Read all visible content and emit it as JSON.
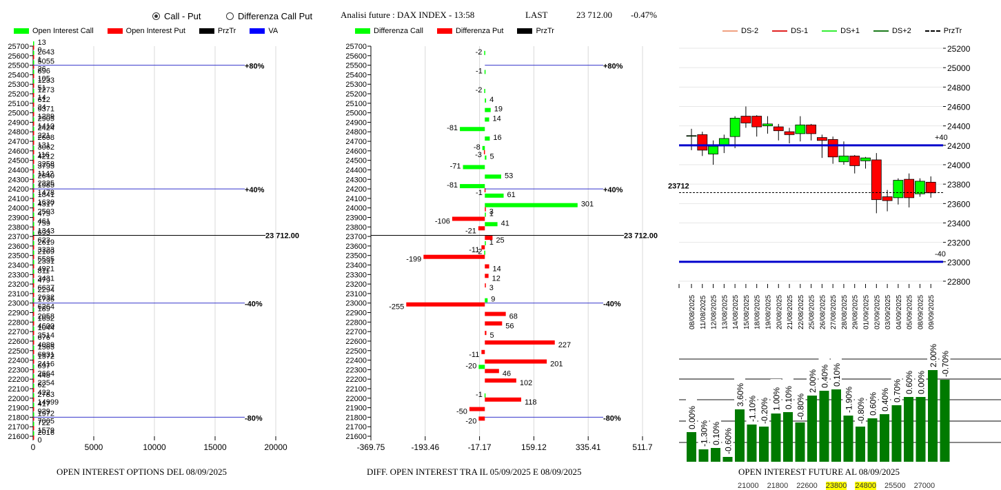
{
  "header": {
    "radio_options": [
      {
        "label": "Call - Put",
        "selected": true
      },
      {
        "label": "Differenza Call Put",
        "selected": false
      }
    ],
    "title": "Analisi future : DAX INDEX - 13:58",
    "last_label": "LAST",
    "last_value": "23 712.00",
    "change": "-0.47%"
  },
  "colors": {
    "call": "#00ff00",
    "put": "#ff0000",
    "prztr": "#000000",
    "va": "#0000ff",
    "ds_minus2": "#f0a080",
    "ds_minus1": "#e02020",
    "ds_plus1": "#33ee33",
    "ds_plus2": "#1a7a1a",
    "bar_green": "#007a00"
  },
  "legends": {
    "left": [
      "Open Interest Call",
      "Open Interest Put",
      "PrzTr",
      "VA"
    ],
    "middle": [
      "Differenza Call",
      "Differenza Put",
      "PrzTr"
    ],
    "right": [
      "DS-2",
      "DS-1",
      "DS+1",
      "DS+2",
      "PrzTr"
    ]
  },
  "chart_data": [
    {
      "type": "bar",
      "orientation": "horizontal",
      "title": "OPEN INTEREST OPTIONS DEL 08/09/2025",
      "categories": [
        25700,
        25600,
        25500,
        25400,
        25300,
        25200,
        25100,
        25000,
        24900,
        24800,
        24700,
        24600,
        24500,
        24400,
        24300,
        24200,
        24100,
        24000,
        23900,
        23800,
        23700,
        23600,
        23500,
        23400,
        23300,
        23200,
        23100,
        23000,
        22900,
        22800,
        22700,
        22600,
        22500,
        22400,
        22300,
        22200,
        22100,
        22000,
        21900,
        21800,
        21700,
        21600
      ],
      "series": [
        {
          "name": "Open Interest Call",
          "values": [
            13,
            2643,
            5055,
            896,
            1233,
            1273,
            612,
            9371,
            2905,
            2424,
            2608,
            3062,
            4212,
            3795,
            2640,
            1985,
            1841,
            4317,
            475,
            759,
            693,
            2619,
            2109,
            2331,
            811,
            479,
            2294,
            1735,
            189,
            1652,
            1044,
            676,
            1565,
            1572,
            697,
            448,
            62,
            2783,
            417,
            1972,
            722,
            2016
          ]
        },
        {
          "name": "Open Interest Put",
          "values": [
            0,
            1,
            26,
            105,
            51,
            14,
            24,
            1289,
            1410,
            221,
            131,
            116,
            3258,
            1142,
            2225,
            1478,
            1630,
            2503,
            461,
            1343,
            623,
            3323,
            5585,
            4921,
            3431,
            6637,
            2632,
            6264,
            2058,
            4600,
            3514,
            4089,
            6931,
            2416,
            2664,
            2354,
            422,
            14999,
            929,
            7005,
            1579,
            0
          ]
        }
      ],
      "xlim": [
        0,
        20000
      ],
      "xticks": [
        "0",
        "5000",
        "10000",
        "15000",
        "20000"
      ],
      "ylim": [
        21600,
        25700
      ],
      "reference_lines": [
        {
          "strike": 25500,
          "label": "+80%",
          "type": "VA"
        },
        {
          "strike": 24200,
          "label": "+40%",
          "type": "VA"
        },
        {
          "strike": 23712,
          "label": "23 712.00",
          "type": "PrzTr"
        },
        {
          "strike": 23000,
          "label": "-40%",
          "type": "VA"
        },
        {
          "strike": 21800,
          "label": "-80%",
          "type": "VA"
        }
      ],
      "grid": true
    },
    {
      "type": "bar",
      "orientation": "horizontal",
      "title": "DIFF. OPEN INTEREST TRA IL 05/09/2025 E 08/09/2025",
      "categories": [
        25700,
        25600,
        25500,
        25400,
        25300,
        25200,
        25100,
        25000,
        24900,
        24800,
        24700,
        24600,
        24500,
        24400,
        24300,
        24200,
        24100,
        24000,
        23900,
        23800,
        23700,
        23600,
        23500,
        23400,
        23300,
        23200,
        23100,
        23000,
        22900,
        22800,
        22700,
        22600,
        22500,
        22400,
        22300,
        22200,
        22100,
        22000,
        21900,
        21800,
        21700,
        21600
      ],
      "series": [
        {
          "name": "Differenza Call",
          "values": [
            null,
            -2,
            null,
            -1,
            null,
            -2,
            4,
            19,
            14,
            -81,
            16,
            -8,
            5,
            -71,
            53,
            -81,
            61,
            301,
            1,
            41,
            null,
            1,
            -2,
            null,
            null,
            null,
            null,
            9,
            null,
            null,
            null,
            null,
            null,
            null,
            -20,
            null,
            null,
            -1,
            null,
            null,
            null,
            null
          ]
        },
        {
          "name": "Differenza Put",
          "values": [
            null,
            null,
            null,
            null,
            null,
            null,
            null,
            null,
            null,
            null,
            null,
            -3,
            null,
            null,
            null,
            -1,
            null,
            3,
            -106,
            -21,
            25,
            -11,
            -199,
            14,
            12,
            3,
            null,
            -255,
            68,
            56,
            5,
            227,
            -11,
            201,
            46,
            102,
            null,
            118,
            -50,
            -20,
            null,
            null
          ]
        }
      ],
      "xlim": [
        -369.75,
        511.7
      ],
      "xticks": [
        "-369.75",
        "-193.46",
        "-17.17",
        "159.12",
        "335.41",
        "511.7"
      ],
      "ylim": [
        21600,
        25700
      ],
      "reference_lines": [
        {
          "strike": 25500,
          "label": "+80%",
          "type": "VA"
        },
        {
          "strike": 24200,
          "label": "+40%",
          "type": "VA"
        },
        {
          "strike": 23712,
          "label": "23 712.00",
          "type": "PrzTr"
        },
        {
          "strike": 23000,
          "label": "-40%",
          "type": "VA"
        },
        {
          "strike": 21800,
          "label": "-80%",
          "type": "VA"
        }
      ],
      "grid": true
    },
    {
      "type": "candlestick",
      "title": "",
      "x": [
        "08/08/2025",
        "11/08/2025",
        "12/08/2025",
        "13/08/2025",
        "14/08/2025",
        "15/08/2025",
        "18/08/2025",
        "19/08/2025",
        "20/08/2025",
        "21/08/2025",
        "22/08/2025",
        "25/08/2025",
        "26/08/2025",
        "27/08/2025",
        "28/08/2025",
        "29/08/2025",
        "01/09/2025",
        "02/09/2025",
        "03/09/2025",
        "04/09/2025",
        "05/09/2025",
        "08/09/2025",
        "09/09/2025"
      ],
      "ohlc": [
        [
          24300,
          24370,
          24150,
          24300
        ],
        [
          24310,
          24340,
          24090,
          24150
        ],
        [
          24110,
          24250,
          24000,
          24190
        ],
        [
          24200,
          24310,
          24120,
          24270
        ],
        [
          24290,
          24500,
          24170,
          24480
        ],
        [
          24500,
          24600,
          24380,
          24430
        ],
        [
          24500,
          24510,
          24290,
          24390
        ],
        [
          24400,
          24500,
          24320,
          24420
        ],
        [
          24390,
          24420,
          24250,
          24350
        ],
        [
          24340,
          24380,
          24220,
          24310
        ],
        [
          24320,
          24500,
          24240,
          24410
        ],
        [
          24410,
          24420,
          24250,
          24320
        ],
        [
          24280,
          24310,
          24070,
          24250
        ],
        [
          24260,
          24290,
          24010,
          24080
        ],
        [
          24030,
          24240,
          24000,
          24090
        ],
        [
          24090,
          24100,
          23910,
          23990
        ],
        [
          24040,
          24080,
          23960,
          24070
        ],
        [
          24050,
          24120,
          23500,
          23640
        ],
        [
          23670,
          23740,
          23520,
          23630
        ],
        [
          23660,
          23860,
          23590,
          23840
        ],
        [
          23850,
          23910,
          23560,
          23660
        ],
        [
          23700,
          23860,
          23670,
          23830
        ],
        [
          23820,
          23880,
          23660,
          23710
        ]
      ],
      "ylim": [
        22800,
        25200
      ],
      "yticks": [
        "25200",
        "25000",
        "24800",
        "24600",
        "24400",
        "24200",
        "24000",
        "23800",
        "23600",
        "23400",
        "23200",
        "23000",
        "22800"
      ],
      "reference_lines": [
        {
          "value": 24200,
          "label": "+40",
          "type": "VA"
        },
        {
          "value": 23000,
          "label": "-40",
          "type": "VA"
        },
        {
          "value": 23712,
          "label": "23712",
          "type": "PrzTr"
        }
      ],
      "grid": true
    },
    {
      "type": "bar",
      "title": "OPEN INTEREST FUTURE AL 08/09/2025",
      "labels": [
        "0.00%",
        "-1.30%",
        "0.10%",
        "-0.60%",
        "3.60%",
        "-1.10%",
        "-0.20%",
        "1.00%",
        "0.10%",
        "-0.80%",
        "2.00%",
        "0.40%",
        "0.10%",
        "-1.90%",
        "-0.80%",
        "0.60%",
        "0.40%",
        "0.70%",
        "0.60%",
        "0.00%",
        "2.00%",
        "-0.70%"
      ],
      "values": [
        43,
        18,
        20,
        7,
        76,
        54,
        51,
        70,
        72,
        57,
        96,
        103,
        105,
        67,
        51,
        63,
        69,
        82,
        94,
        94,
        133,
        119
      ],
      "value_units": "relative height (no y axis shown)",
      "grid": true
    }
  ],
  "bottom_strip": {
    "values": [
      "21000",
      "21800",
      "22600",
      "23800",
      "24800",
      "25500",
      "27000"
    ],
    "highlighted": [
      "23800",
      "24800"
    ]
  }
}
